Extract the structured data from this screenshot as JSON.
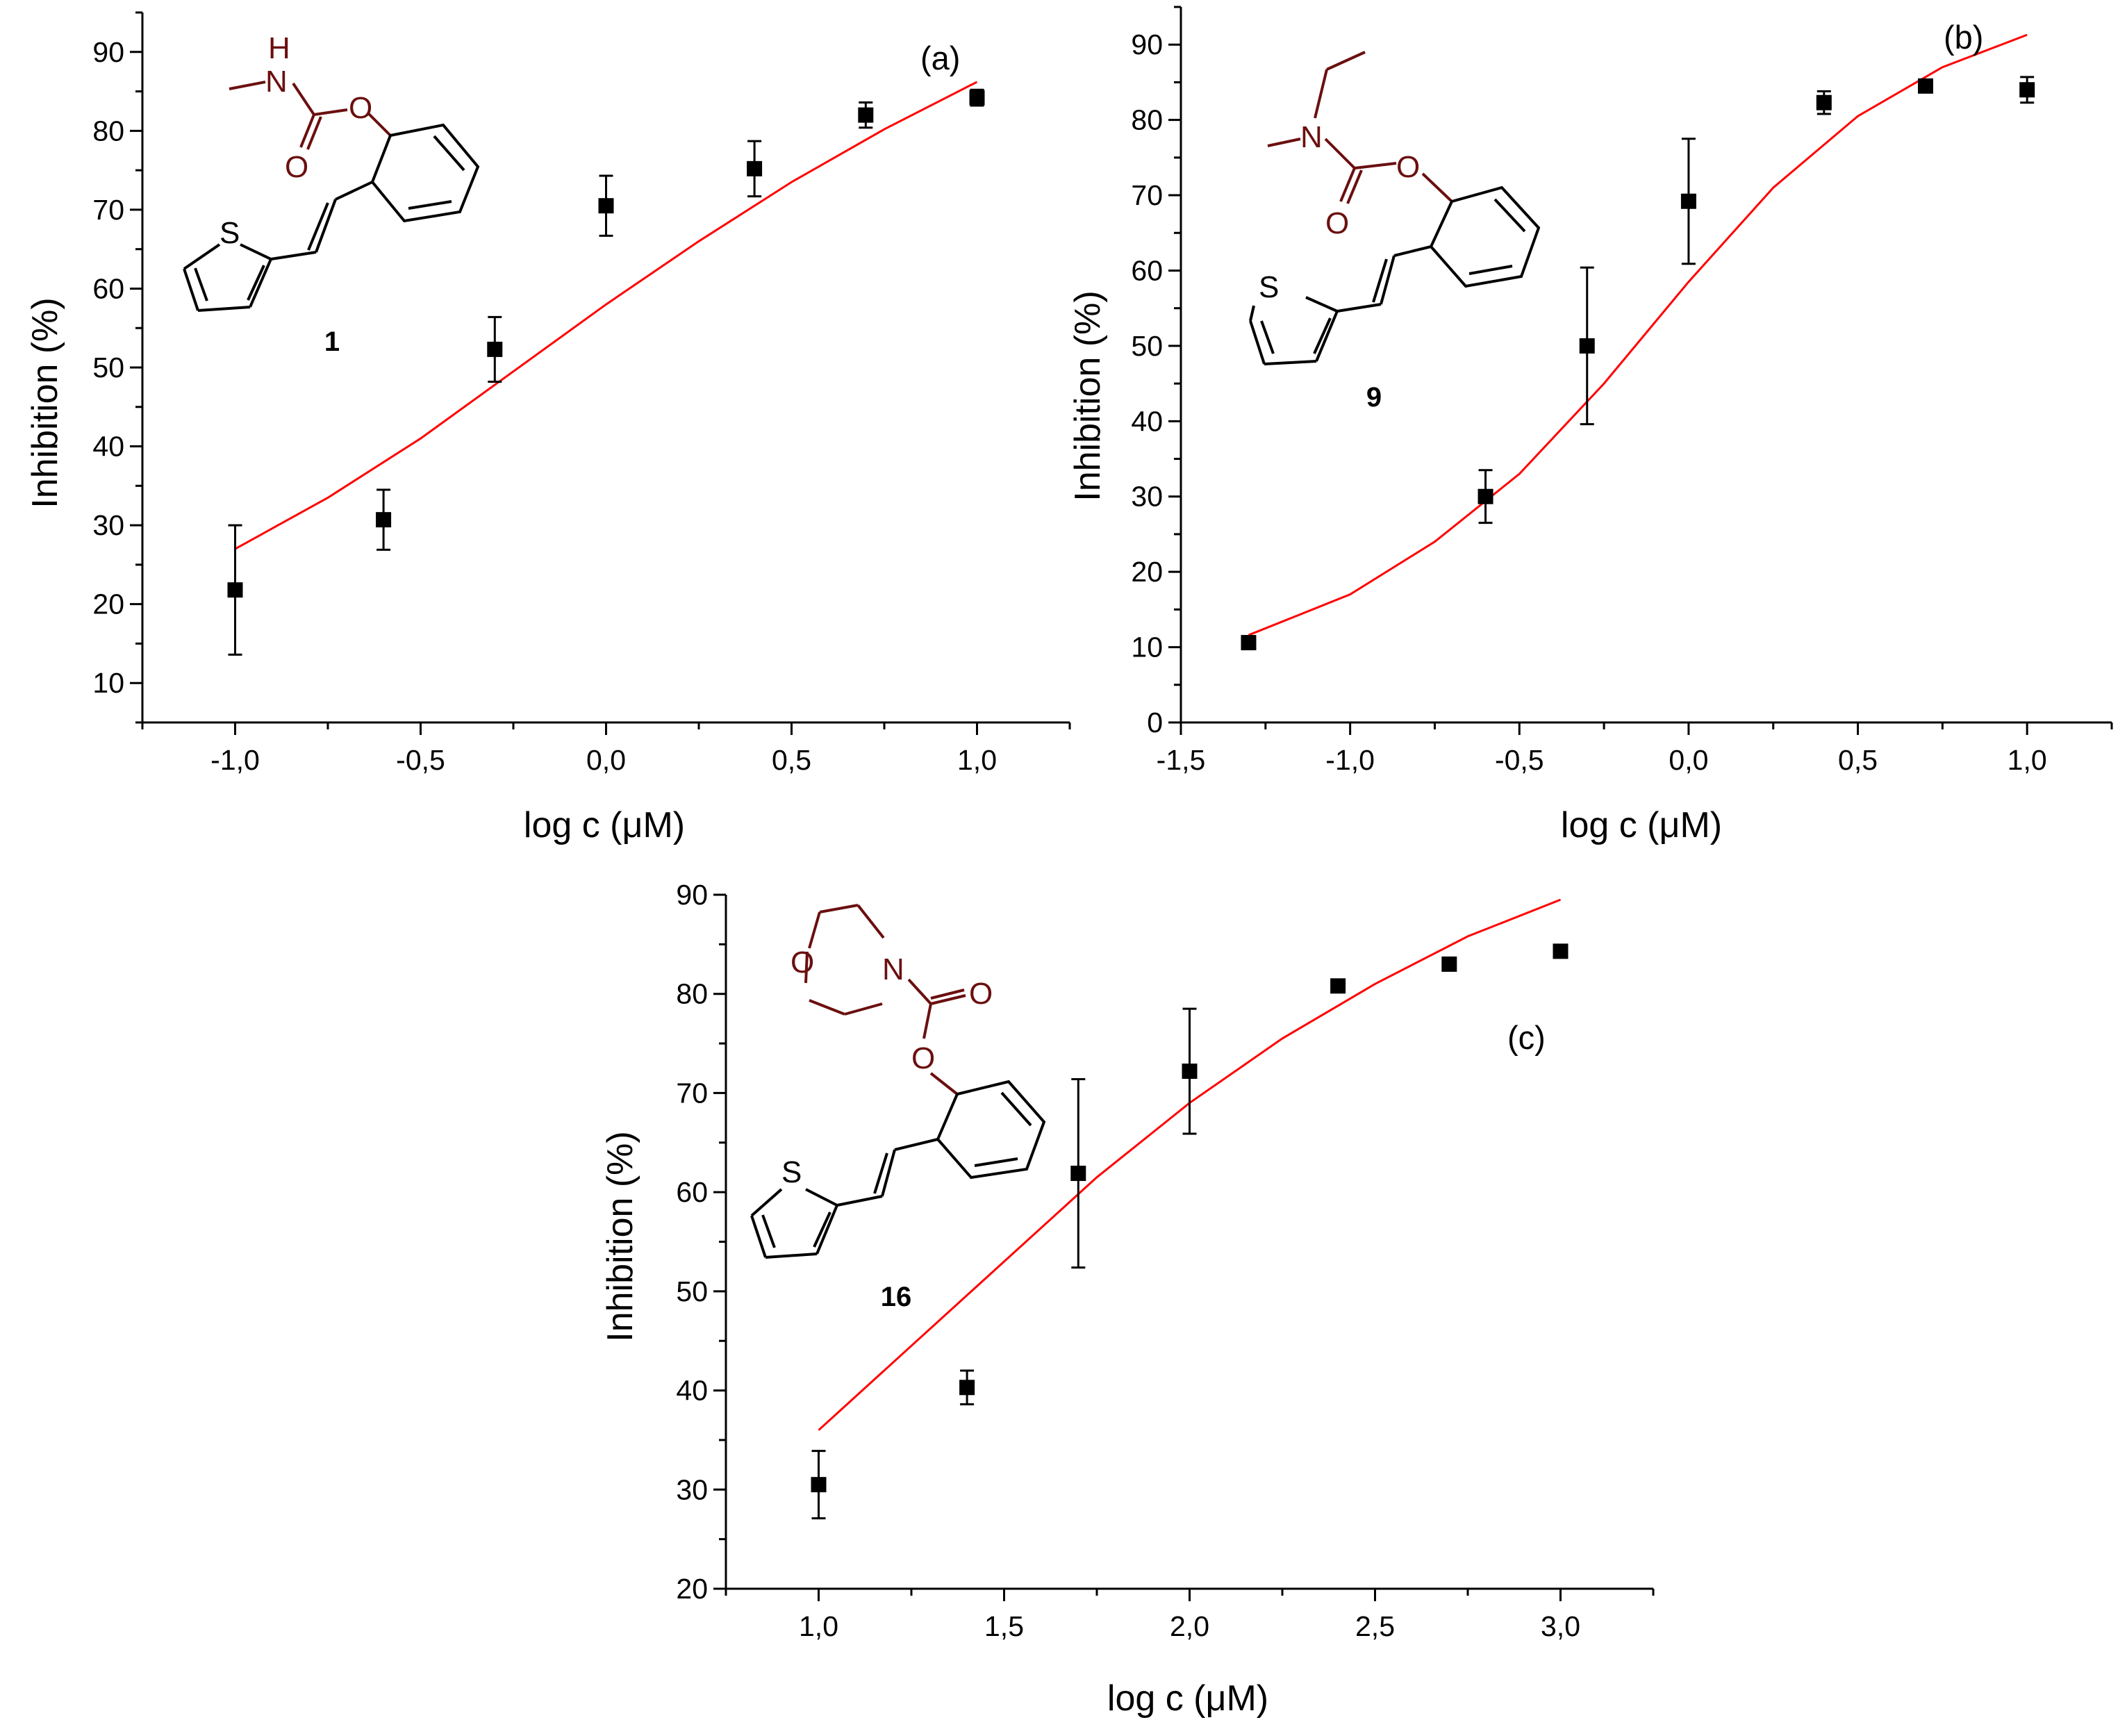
{
  "colors": {
    "fit_line": "#ff0000",
    "marker": "#000000",
    "molecule_carbamate": "#6b0f0f",
    "molecule_core": "#000000",
    "axes": "#000000"
  },
  "chart_data": [
    {
      "type": "scatter",
      "panel_tag": "(a)",
      "compound_label": "1",
      "xlabel": "log c (μM)",
      "ylabel": "Inhibition (%)",
      "xlim": [
        -1.25,
        1.25
      ],
      "ylim": [
        5,
        95
      ],
      "xticks": [
        -1.0,
        -0.5,
        0.0,
        0.5,
        1.0
      ],
      "xtick_labels": [
        "-1,0",
        "-0,5",
        "0,0",
        "0,5",
        "1,0"
      ],
      "yticks": [
        10,
        20,
        30,
        40,
        50,
        60,
        70,
        80,
        90
      ],
      "ytick_labels": [
        "10",
        "20",
        "30",
        "40",
        "50",
        "60",
        "70",
        "80",
        "90"
      ],
      "grid": false,
      "series": [
        {
          "kind": "points",
          "x": [
            -1.0,
            -0.6,
            -0.3,
            0.0,
            0.4,
            0.7,
            1.0
          ],
          "y": [
            21.8,
            30.7,
            52.3,
            70.5,
            75.2,
            82.0,
            84.2
          ],
          "err": [
            8.2,
            3.8,
            4.1,
            3.8,
            3.5,
            1.6,
            1.0
          ]
        },
        {
          "kind": "fit",
          "x": [
            -1.0,
            -0.75,
            -0.5,
            -0.25,
            0.0,
            0.25,
            0.5,
            0.75,
            1.0
          ],
          "y": [
            27.0,
            33.5,
            41.0,
            49.5,
            58.0,
            66.0,
            73.5,
            80.2,
            86.2
          ]
        }
      ],
      "molecule": {
        "atoms": {
          "N": "N",
          "H": "H",
          "O_ester": "O",
          "O_carbonyl": "O",
          "S": "S"
        }
      }
    },
    {
      "type": "scatter",
      "panel_tag": "(b)",
      "compound_label": "9",
      "xlabel": "log c (μM)",
      "ylabel": "Inhibition (%)",
      "xlim": [
        -1.5,
        1.25
      ],
      "ylim": [
        0,
        95
      ],
      "xticks": [
        -1.5,
        -1.0,
        -0.5,
        0.0,
        0.5,
        1.0
      ],
      "xtick_labels": [
        "-1,5",
        "-1,0",
        "-0,5",
        "0,0",
        "0,5",
        "1,0"
      ],
      "yticks": [
        0,
        10,
        20,
        30,
        40,
        50,
        60,
        70,
        80,
        90
      ],
      "ytick_labels": [
        "0",
        "10",
        "20",
        "30",
        "40",
        "50",
        "60",
        "70",
        "80",
        "90"
      ],
      "grid": false,
      "series": [
        {
          "kind": "points",
          "x": [
            -1.3,
            -0.6,
            -0.3,
            0.0,
            0.4,
            0.7,
            1.0
          ],
          "y": [
            10.6,
            30.0,
            50.0,
            69.2,
            82.3,
            84.5,
            84.0
          ],
          "err": [
            0.8,
            3.5,
            10.4,
            8.3,
            1.5,
            0.7,
            1.7
          ]
        },
        {
          "kind": "fit",
          "x": [
            -1.3,
            -1.0,
            -0.75,
            -0.5,
            -0.25,
            0.0,
            0.25,
            0.5,
            0.75,
            1.0
          ],
          "y": [
            11.6,
            17.0,
            24.0,
            33.0,
            45.0,
            58.5,
            71.0,
            80.5,
            87.0,
            91.3
          ]
        }
      ],
      "molecule": {
        "atoms": {
          "N": "N",
          "O_ester": "O",
          "O_carbonyl": "O",
          "S": "S"
        }
      }
    },
    {
      "type": "scatter",
      "panel_tag": "(c)",
      "compound_label": "16",
      "xlabel": "log c (μM)",
      "ylabel": "Inhibition (%)",
      "xlim": [
        0.75,
        3.25
      ],
      "ylim": [
        20,
        90
      ],
      "xticks": [
        1.0,
        1.5,
        2.0,
        2.5,
        3.0
      ],
      "xtick_labels": [
        "1,0",
        "1,5",
        "2,0",
        "2,5",
        "3,0"
      ],
      "yticks": [
        20,
        30,
        40,
        50,
        60,
        70,
        80,
        90
      ],
      "ytick_labels": [
        "20",
        "30",
        "40",
        "50",
        "60",
        "70",
        "80",
        "90"
      ],
      "grid": false,
      "series": [
        {
          "kind": "points",
          "x": [
            1.0,
            1.4,
            1.7,
            2.0,
            2.4,
            2.7,
            3.0
          ],
          "y": [
            30.5,
            40.3,
            61.9,
            72.2,
            80.8,
            83.0,
            84.3
          ],
          "err": [
            3.4,
            1.7,
            9.5,
            6.3,
            0.4,
            0.4,
            0.6
          ]
        },
        {
          "kind": "fit",
          "x": [
            1.0,
            1.25,
            1.5,
            1.75,
            2.0,
            2.25,
            2.5,
            2.75,
            3.0
          ],
          "y": [
            36.0,
            44.5,
            53.0,
            61.5,
            69.0,
            75.5,
            81.0,
            85.8,
            89.5
          ]
        }
      ],
      "molecule": {
        "atoms": {
          "O_ring": "O",
          "N": "N",
          "O_carbonyl": "O",
          "O_ester": "O",
          "S": "S"
        }
      }
    }
  ]
}
